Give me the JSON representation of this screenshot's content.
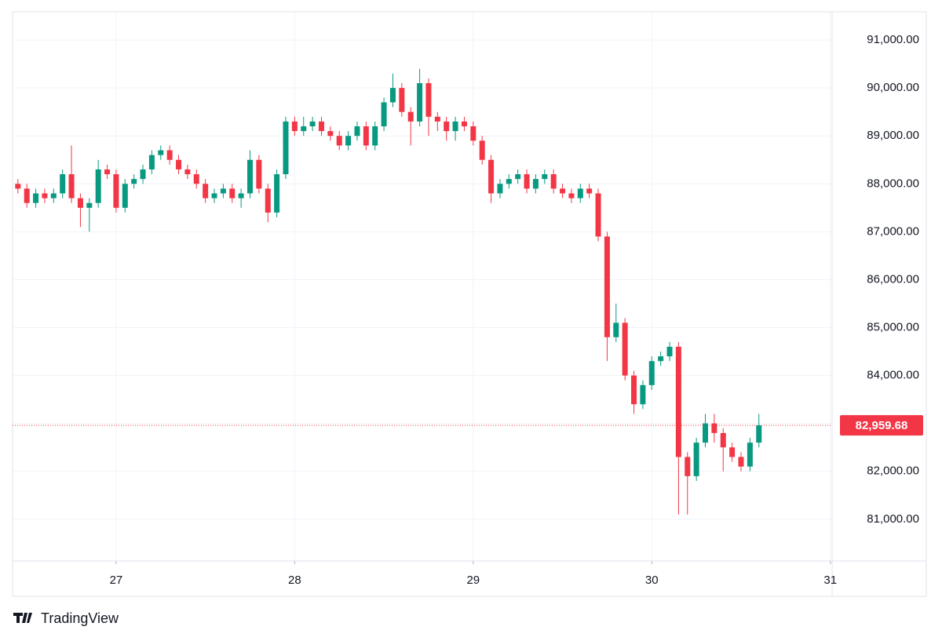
{
  "chart_data": {
    "type": "candlestick",
    "x": [
      26.45,
      26.5,
      26.55,
      26.6,
      26.65,
      26.7,
      26.75,
      26.8,
      26.85,
      26.9,
      26.95,
      27,
      27.05,
      27.1,
      27.15,
      27.2,
      27.25,
      27.3,
      27.35,
      27.4,
      27.45,
      27.5,
      27.55,
      27.6,
      27.65,
      27.7,
      27.75,
      27.8,
      27.85,
      27.9,
      27.95,
      28,
      28.05,
      28.1,
      28.15,
      28.2,
      28.25,
      28.3,
      28.35,
      28.4,
      28.45,
      28.5,
      28.55,
      28.6,
      28.65,
      28.7,
      28.75,
      28.8,
      28.85,
      28.9,
      28.95,
      29,
      29.05,
      29.1,
      29.15,
      29.2,
      29.25,
      29.3,
      29.35,
      29.4,
      29.45,
      29.5,
      29.55,
      29.6,
      29.65,
      29.7,
      29.75,
      29.8,
      29.85,
      29.9,
      29.95,
      30,
      30.05,
      30.1,
      30.15,
      30.2,
      30.25,
      30.3,
      30.35,
      30.4,
      30.45,
      30.5,
      30.55,
      30.6
    ],
    "open": [
      88000,
      87900,
      87600,
      87800,
      87700,
      87800,
      88200,
      87700,
      87500,
      87600,
      88300,
      88200,
      87500,
      88000,
      88100,
      88300,
      88600,
      88700,
      88500,
      88300,
      88200,
      88000,
      87700,
      87800,
      87900,
      87700,
      87800,
      88500,
      87900,
      87400,
      88200,
      89300,
      89100,
      89200,
      89300,
      89100,
      89000,
      88800,
      89000,
      89200,
      88800,
      89200,
      89700,
      90000,
      89500,
      89300,
      90100,
      89400,
      89300,
      89100,
      89300,
      89200,
      88900,
      88500,
      87800,
      88000,
      88100,
      88200,
      87900,
      88100,
      88200,
      87900,
      87800,
      87700,
      87900,
      87800,
      86900,
      84800,
      85100,
      84000,
      83400,
      83800,
      84300,
      84400,
      84600,
      82300,
      81900,
      82600,
      83000,
      82800,
      82500,
      82300,
      82100,
      82600
    ],
    "high": [
      88100,
      88000,
      87900,
      87900,
      87900,
      88300,
      88800,
      87800,
      87700,
      88500,
      88400,
      88300,
      88100,
      88200,
      88400,
      88700,
      88800,
      88800,
      88600,
      88400,
      88300,
      88100,
      87900,
      88000,
      88000,
      87900,
      88700,
      88600,
      88000,
      88300,
      89400,
      89400,
      89400,
      89400,
      89400,
      89200,
      89100,
      89100,
      89300,
      89300,
      89300,
      89800,
      90300,
      90100,
      89600,
      90400,
      90200,
      89500,
      89400,
      89400,
      89400,
      89300,
      89000,
      88600,
      88100,
      88200,
      88300,
      88300,
      88200,
      88300,
      88300,
      88000,
      87900,
      88000,
      88000,
      87900,
      87000,
      85500,
      85200,
      84100,
      83900,
      84400,
      84500,
      84700,
      84700,
      82400,
      82700,
      83200,
      83200,
      82900,
      82600,
      82400,
      82700,
      83200
    ],
    "low": [
      87800,
      87500,
      87500,
      87600,
      87600,
      87700,
      87600,
      87100,
      87000,
      87500,
      88100,
      87400,
      87400,
      87900,
      88000,
      88200,
      88500,
      88400,
      88200,
      88100,
      87900,
      87600,
      87600,
      87700,
      87600,
      87500,
      87700,
      87800,
      87200,
      87300,
      88100,
      89000,
      89000,
      89100,
      89000,
      88900,
      88700,
      88700,
      88900,
      88700,
      88700,
      89100,
      89600,
      89400,
      88800,
      89200,
      89000,
      89100,
      88900,
      88900,
      89100,
      88800,
      88400,
      87600,
      87700,
      87900,
      88000,
      87800,
      87800,
      88000,
      87800,
      87700,
      87600,
      87600,
      87700,
      86800,
      84300,
      84700,
      83900,
      83200,
      83300,
      83700,
      84200,
      84300,
      81100,
      81100,
      81800,
      82500,
      82600,
      82000,
      82200,
      82000,
      82000,
      82500
    ],
    "close": [
      87900,
      87600,
      87800,
      87700,
      87800,
      88200,
      87700,
      87500,
      87600,
      88300,
      88200,
      87500,
      88000,
      88100,
      88300,
      88600,
      88700,
      88500,
      88300,
      88200,
      88000,
      87700,
      87800,
      87900,
      87700,
      87800,
      88500,
      87900,
      87400,
      88200,
      89300,
      89100,
      89200,
      89300,
      89100,
      89000,
      88800,
      89000,
      89200,
      88800,
      89200,
      89700,
      90000,
      89500,
      89300,
      90100,
      89400,
      89300,
      89100,
      89300,
      89200,
      88900,
      88500,
      87800,
      88000,
      88100,
      88200,
      87900,
      88100,
      88200,
      87900,
      87800,
      87700,
      87900,
      87800,
      86900,
      84800,
      85100,
      84000,
      83400,
      83800,
      84300,
      84400,
      84600,
      82300,
      81900,
      82600,
      83000,
      82800,
      82500,
      82300,
      82100,
      82600,
      82960
    ],
    "up_color": "#089981",
    "down_color": "#f23645",
    "xlim": [
      26.42,
      31.01
    ],
    "xticks": [
      27,
      28,
      29,
      30,
      31
    ],
    "ylim": [
      80130,
      91590
    ],
    "yticks": [
      {
        "value": 81000,
        "label": "81,000.00"
      },
      {
        "value": 82000,
        "label": "82,000.00"
      },
      {
        "value": 83000,
        "label": "83,000.00"
      },
      {
        "value": 84000,
        "label": "84,000.00"
      },
      {
        "value": 85000,
        "label": "85,000.00"
      },
      {
        "value": 86000,
        "label": "86,000.00"
      },
      {
        "value": 87000,
        "label": "87,000.00"
      },
      {
        "value": 88000,
        "label": "88,000.00"
      },
      {
        "value": 89000,
        "label": "89,000.00"
      },
      {
        "value": 90000,
        "label": "90,000.00"
      },
      {
        "value": 91000,
        "label": "91,000.00"
      }
    ],
    "last_price": {
      "value": 82959.68,
      "label": "82,959.68"
    },
    "grid": true,
    "brand": "TradingView"
  }
}
